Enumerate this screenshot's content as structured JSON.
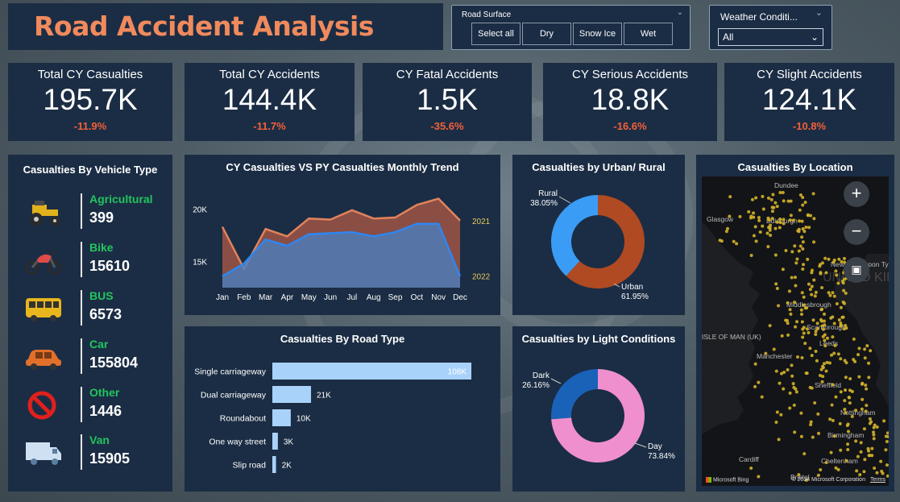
{
  "header": {
    "title": "Road Accident Analysis"
  },
  "road_surface": {
    "title": "Road Surface",
    "options": [
      "Select all",
      "Dry",
      "Snow Ice",
      "Wet"
    ]
  },
  "weather": {
    "title": "Weather Conditi...",
    "selected": "All"
  },
  "kpis": [
    {
      "title": "Total CY Casualties",
      "value": "195.7K",
      "delta": "-11.9%"
    },
    {
      "title": "Total CY Accidents",
      "value": "144.4K",
      "delta": "-11.7%"
    },
    {
      "title": "CY Fatal Accidents",
      "value": "1.5K",
      "delta": "-35.6%"
    },
    {
      "title": "CY Serious Accidents",
      "value": "18.8K",
      "delta": "-16.6%"
    },
    {
      "title": "CY Slight Accidents",
      "value": "124.1K",
      "delta": "-10.8%"
    }
  ],
  "vehicles": {
    "title": "Casualties By Vehicle Type",
    "items": [
      {
        "name": "Agricultural",
        "value": "399",
        "icon": "tractor-icon"
      },
      {
        "name": "Bike",
        "value": "15610",
        "icon": "motorbike-icon"
      },
      {
        "name": "BUS",
        "value": "6573",
        "icon": "bus-icon"
      },
      {
        "name": "Car",
        "value": "155804",
        "icon": "car-icon"
      },
      {
        "name": "Other",
        "value": "1446",
        "icon": "prohibited-icon"
      },
      {
        "name": "Van",
        "value": "15905",
        "icon": "van-icon"
      }
    ]
  },
  "trend": {
    "title": "CY Casualties VS PY Casualties Monthly Trend"
  },
  "urban": {
    "title": "Casualties by Urban/ Rural"
  },
  "light": {
    "title": "Casualties by Light Conditions"
  },
  "road_type": {
    "title": "Casualties By Road Type"
  },
  "location": {
    "title": "Casualties By Location",
    "place_labels": [
      "Glasgow",
      "Dundee",
      "Edinburgh",
      "Newcastle upon Tyne",
      "Middlesbrough",
      "Scarborough",
      "Leeds",
      "Manchester",
      "Sheffield",
      "Nottingham",
      "Birmingham",
      "Cheltenham",
      "Cardiff",
      "Bristol",
      "ISLE OF MAN (UK)",
      "UNITED KINGDOM"
    ],
    "attribution": "© 2024 Microsoft Corporation",
    "terms": "Terms",
    "bing": "Microsoft Bing"
  },
  "colors": {
    "title": "#f08a5d",
    "panel": "#1b2d44",
    "cy": "#2f86f0",
    "py": "#e0835c",
    "good": "#22c55e",
    "bad": "#f4603a"
  },
  "chart_data": [
    {
      "type": "area",
      "title": "CY Casualties VS PY Casualties Monthly Trend",
      "categories": [
        "Jan",
        "Feb",
        "Mar",
        "Apr",
        "May",
        "Jun",
        "Jul",
        "Aug",
        "Sep",
        "Oct",
        "Nov",
        "Dec"
      ],
      "yticks": [
        "15K",
        "20K"
      ],
      "ylim": [
        12500,
        21500
      ],
      "series": [
        {
          "name": "2021",
          "values": [
            18300,
            14300,
            18100,
            17400,
            19100,
            19000,
            19900,
            19100,
            19200,
            20400,
            21000,
            18900
          ]
        },
        {
          "name": "2022",
          "values": [
            13600,
            14800,
            17100,
            16500,
            17600,
            17700,
            17800,
            17400,
            17800,
            18600,
            18600,
            13600
          ]
        }
      ]
    },
    {
      "type": "pie",
      "title": "Casualties by Urban/ Rural",
      "labels": [
        "Urban",
        "Rural"
      ],
      "values": [
        61.95,
        38.05
      ],
      "display": [
        "61.95%",
        "38.05%"
      ],
      "colors": [
        "#b04a22",
        "#3b9cf5"
      ]
    },
    {
      "type": "pie",
      "title": "Casualties by Light Conditions",
      "labels": [
        "Day",
        "Dark"
      ],
      "values": [
        73.84,
        26.16
      ],
      "display": [
        "73.84%",
        "26.16%"
      ],
      "colors": [
        "#ef8fce",
        "#1a61b8"
      ]
    },
    {
      "type": "bar",
      "title": "Casualties By Road Type",
      "categories": [
        "Single carriageway",
        "Dual carriageway",
        "Roundabout",
        "One way street",
        "Slip road"
      ],
      "values": [
        108000,
        21000,
        10000,
        3000,
        2000
      ],
      "labels": [
        "108K",
        "21K",
        "10K",
        "3K",
        "2K"
      ]
    }
  ]
}
